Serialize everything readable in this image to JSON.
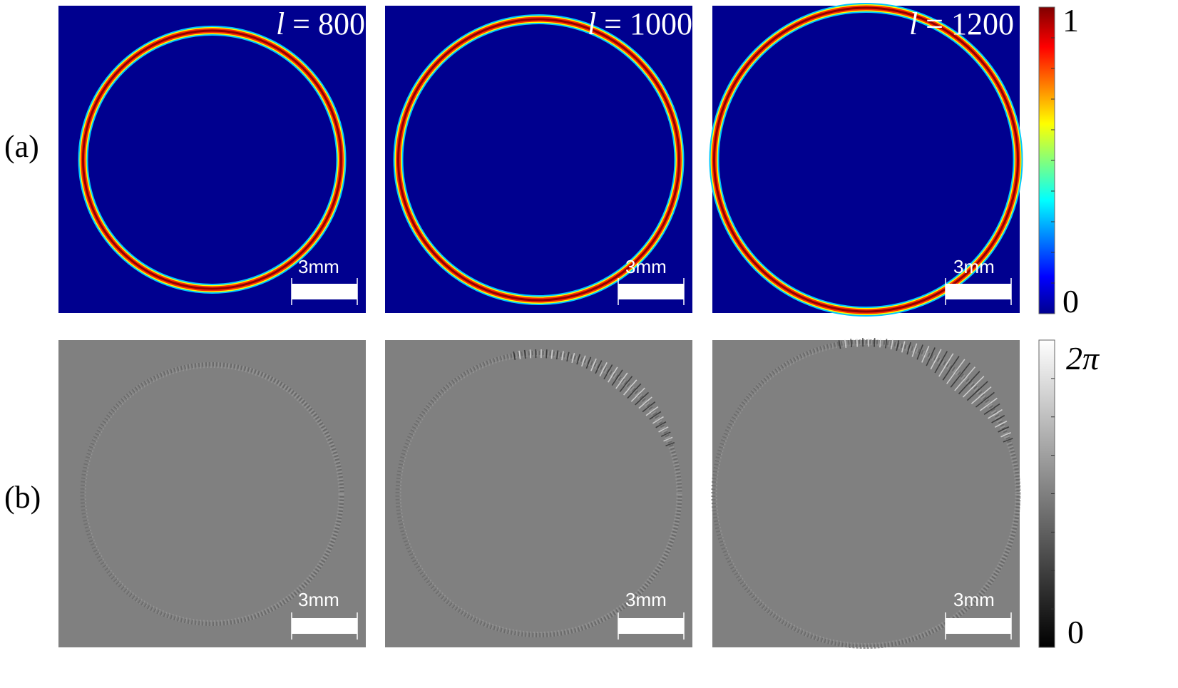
{
  "figure": {
    "rows": [
      {
        "label": "(a)",
        "type": "intensity",
        "background": "#00008f"
      },
      {
        "label": "(b)",
        "type": "phase",
        "background": "#808080"
      }
    ],
    "panels": [
      {
        "l_symbol": "l",
        "eq": " = ",
        "l_value": "800",
        "scale_label": "3mm"
      },
      {
        "l_symbol": "l",
        "eq": " = ",
        "l_value": "1000",
        "scale_label": "3mm"
      },
      {
        "l_symbol": "l",
        "eq": " = ",
        "l_value": "1200",
        "scale_label": "3mm"
      }
    ],
    "colorbars": [
      {
        "colormap": "jet",
        "max_label": "1",
        "min_label": "0"
      },
      {
        "colormap": "gray",
        "max_label": "2π",
        "min_label": "0"
      }
    ]
  }
}
